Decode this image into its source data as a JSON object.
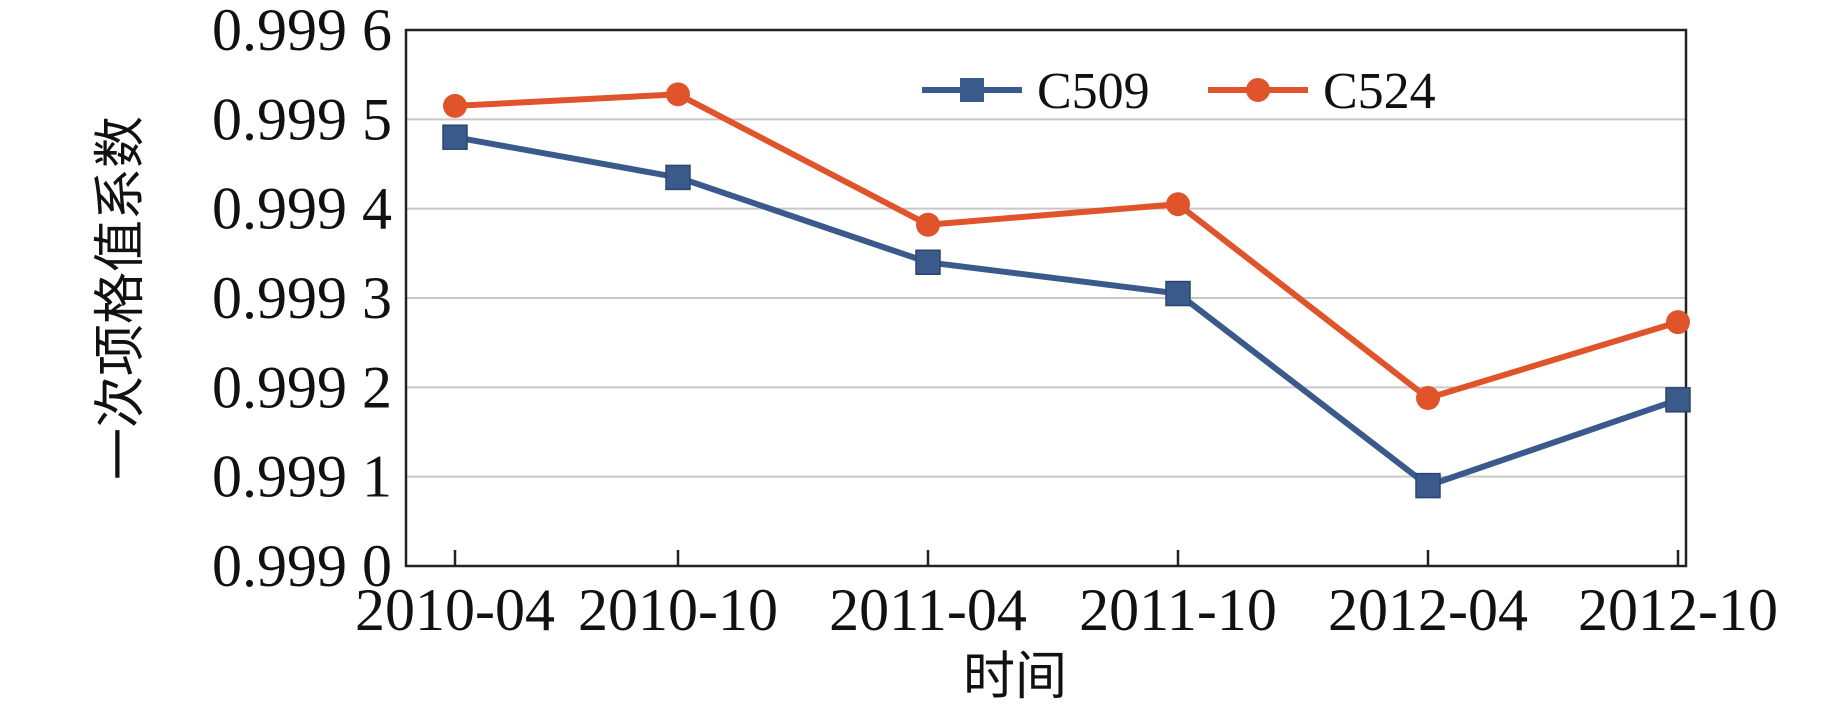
{
  "chart_data": {
    "type": "line",
    "categories": [
      "2010-04",
      "2010-10",
      "2011-04",
      "2011-10",
      "2012-04",
      "2012-10"
    ],
    "series": [
      {
        "name": "C509",
        "values": [
          0.99948,
          0.999435,
          0.99934,
          0.999305,
          0.99909,
          0.999186
        ],
        "color": "#3a5a8c",
        "marker": "square"
      },
      {
        "name": "C524",
        "values": [
          0.999515,
          0.999528,
          0.999382,
          0.999405,
          0.999188,
          0.999273
        ],
        "color": "#e0542b",
        "marker": "circle"
      }
    ],
    "yticks": [
      "0.999 0",
      "0.999 1",
      "0.999 2",
      "0.999 3",
      "0.999 4",
      "0.999 5",
      "0.999 6"
    ],
    "ylim": [
      0.999,
      0.9996
    ],
    "xlabel": "时间",
    "ylabel": "一次项格值系数",
    "grid": "horizontal",
    "legend_position": "top-right"
  }
}
